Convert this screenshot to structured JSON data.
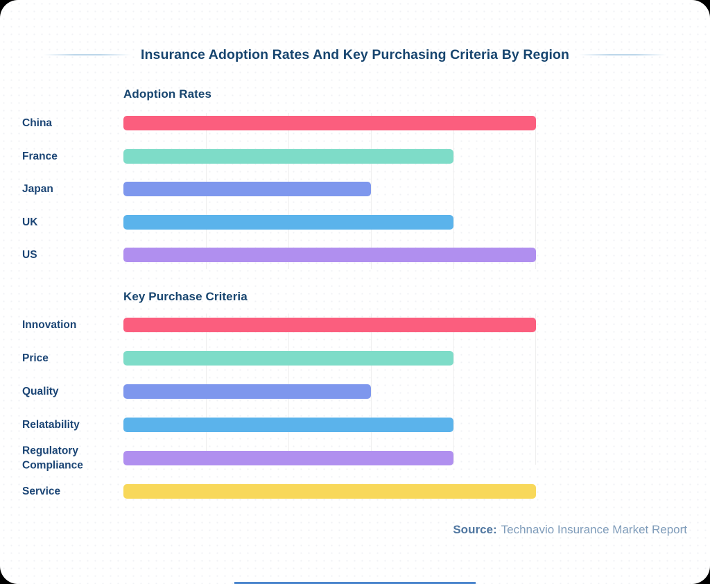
{
  "page": {
    "title": "Insurance Adoption Rates And Key Purchasing Criteria By Region",
    "source_label": "Source:",
    "source_text": "Technavio Insurance Market Report"
  },
  "palette": {
    "title_navy": "#17456f",
    "label_navy": "#1b4575",
    "accent_line_blue": "#bcd6ea",
    "gridline_gray": "#efefef",
    "source_label_blue": "#4f76a0",
    "source_text_blue": "#7f9cba",
    "bottom_line_blue": "#4c86cd"
  },
  "chart_data": [
    {
      "type": "bar",
      "orientation": "horizontal",
      "title": "Adoption Rates",
      "categories": [
        "China",
        "France",
        "Japan",
        "UK",
        "US"
      ],
      "values": [
        100,
        80,
        60,
        80,
        100
      ],
      "xlim": [
        0,
        100
      ],
      "xlabel": "",
      "ylabel": "",
      "value_labels_shown": false,
      "axis_tick_labels_shown": false,
      "grid": "faint vertical gridlines at 20% intervals",
      "legend": "none",
      "bar_colors": [
        "#fb5e7e",
        "#7edcc8",
        "#7e97ed",
        "#5bb3eb",
        "#b08fef"
      ]
    },
    {
      "type": "bar",
      "orientation": "horizontal",
      "title": "Key Purchase Criteria",
      "categories": [
        "Innovation",
        "Price",
        "Quality",
        "Relatability",
        "Regulatory Compliance",
        "Service"
      ],
      "values": [
        100,
        80,
        60,
        80,
        80,
        100
      ],
      "xlim": [
        0,
        100
      ],
      "xlabel": "",
      "ylabel": "",
      "value_labels_shown": false,
      "axis_tick_labels_shown": false,
      "grid": "faint vertical gridlines at 20% intervals",
      "legend": "none",
      "bar_colors": [
        "#fb5e7e",
        "#7edcc8",
        "#7e97ed",
        "#5bb3eb",
        "#b08fef",
        "#f8d85a"
      ]
    }
  ]
}
